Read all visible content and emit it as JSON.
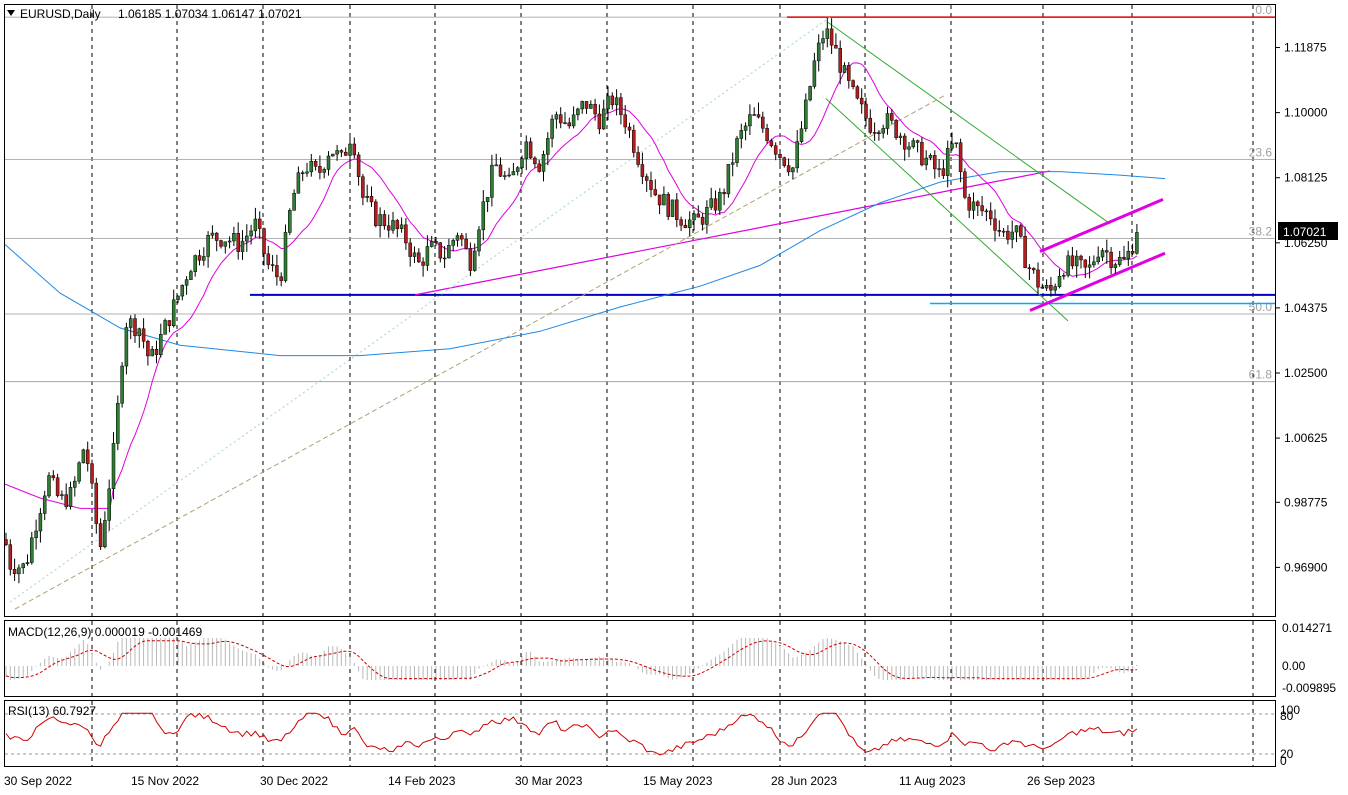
{
  "header": {
    "symbol": "EURUSD,Daily",
    "ohlc": "1.06185 1.07034 1.06147 1.07021"
  },
  "colors": {
    "background": "#ffffff",
    "candle_up": "#2e7d32",
    "candle_down": "#b71c1c",
    "ma_blue": "#1e88e5",
    "ma_magenta": "#e000e0",
    "resistance": "#e00000",
    "support": "#0000c0",
    "support_light": "#00aaff",
    "channel": "#33aa33",
    "macd_signal": "#d00000",
    "rsi": "#d00000",
    "grid": "#000000"
  },
  "chart_data": [
    {
      "type": "candlestick",
      "title": "",
      "current_price_label": "1.07021",
      "ylim": [
        0.955,
        1.131
      ],
      "y_ticks": [
        "1.11875",
        "1.10000",
        "1.08125",
        "1.06250",
        "1.04375",
        "1.02500",
        "1.00625",
        "0.98775",
        "0.96900"
      ],
      "x_ticks": [
        "30 Sep 2022",
        "15 Nov 2022",
        "30 Dec 2022",
        "14 Feb 2023",
        "30 Mar 2023",
        "15 May 2023",
        "28 Jun 2023",
        "11 Aug 2023",
        "26 Sep 2023"
      ],
      "fibonacci": [
        {
          "label": "0.0",
          "price": 1.1275
        },
        {
          "label": "23.6",
          "price": 1.0865
        },
        {
          "label": "38.2",
          "price": 1.0637
        },
        {
          "label": "50.0",
          "price": 1.042
        },
        {
          "label": "61.8",
          "price": 1.0225
        }
      ],
      "price_anchors": [
        [
          0,
          0.984
        ],
        [
          10,
          0.97
        ],
        [
          25,
          0.969
        ],
        [
          35,
          0.981
        ],
        [
          48,
          0.995
        ],
        [
          60,
          0.988
        ],
        [
          72,
          0.99
        ],
        [
          85,
          1.005
        ],
        [
          100,
          0.974
        ],
        [
          115,
          1.005
        ],
        [
          125,
          1.04
        ],
        [
          140,
          1.038
        ],
        [
          150,
          1.028
        ],
        [
          162,
          1.036
        ],
        [
          175,
          1.045
        ],
        [
          190,
          1.056
        ],
        [
          210,
          1.064
        ],
        [
          225,
          1.064
        ],
        [
          240,
          1.062
        ],
        [
          255,
          1.068
        ],
        [
          268,
          1.056
        ],
        [
          280,
          1.052
        ],
        [
          292,
          1.075
        ],
        [
          305,
          1.085
        ],
        [
          318,
          1.082
        ],
        [
          330,
          1.09
        ],
        [
          342,
          1.086
        ],
        [
          352,
          1.095
        ],
        [
          362,
          1.076
        ],
        [
          375,
          1.07
        ],
        [
          390,
          1.068
        ],
        [
          405,
          1.064
        ],
        [
          418,
          1.056
        ],
        [
          430,
          1.061
        ],
        [
          445,
          1.059
        ],
        [
          458,
          1.066
        ],
        [
          470,
          1.057
        ],
        [
          480,
          1.07
        ],
        [
          495,
          1.085
        ],
        [
          510,
          1.079
        ],
        [
          525,
          1.092
        ],
        [
          540,
          1.085
        ],
        [
          555,
          1.1
        ],
        [
          570,
          1.096
        ],
        [
          585,
          1.103
        ],
        [
          600,
          1.098
        ],
        [
          612,
          1.104
        ],
        [
          625,
          1.098
        ],
        [
          640,
          1.086
        ],
        [
          655,
          1.077
        ],
        [
          668,
          1.073
        ],
        [
          680,
          1.07
        ],
        [
          695,
          1.068
        ],
        [
          710,
          1.072
        ],
        [
          722,
          1.076
        ],
        [
          738,
          1.092
        ],
        [
          752,
          1.099
        ],
        [
          765,
          1.095
        ],
        [
          780,
          1.088
        ],
        [
          793,
          1.084
        ],
        [
          805,
          1.1
        ],
        [
          815,
          1.115
        ],
        [
          825,
          1.124
        ],
        [
          835,
          1.118
        ],
        [
          848,
          1.108
        ],
        [
          858,
          1.102
        ],
        [
          872,
          1.096
        ],
        [
          885,
          1.098
        ],
        [
          900,
          1.094
        ],
        [
          912,
          1.09
        ],
        [
          928,
          1.086
        ],
        [
          940,
          1.082
        ],
        [
          955,
          1.092
        ],
        [
          965,
          1.075
        ],
        [
          978,
          1.072
        ],
        [
          990,
          1.071
        ],
        [
          1002,
          1.065
        ],
        [
          1015,
          1.066
        ],
        [
          1028,
          1.056
        ],
        [
          1040,
          1.05
        ],
        [
          1050,
          1.048
        ],
        [
          1062,
          1.056
        ],
        [
          1075,
          1.056
        ],
        [
          1088,
          1.054
        ],
        [
          1100,
          1.062
        ],
        [
          1112,
          1.058
        ],
        [
          1125,
          1.057
        ],
        [
          1135,
          1.064
        ],
        [
          1139,
          1.0702
        ]
      ]
    },
    {
      "type": "line",
      "title": "MACD(12,26,9) 0.000019 -0.001469",
      "y_ticks": [
        "0.014271",
        "0.00",
        "-0.009895"
      ]
    },
    {
      "type": "line",
      "title": "RSI(13) 60.7927",
      "y_ticks": [
        "100",
        "80",
        "20",
        "0"
      ]
    }
  ]
}
